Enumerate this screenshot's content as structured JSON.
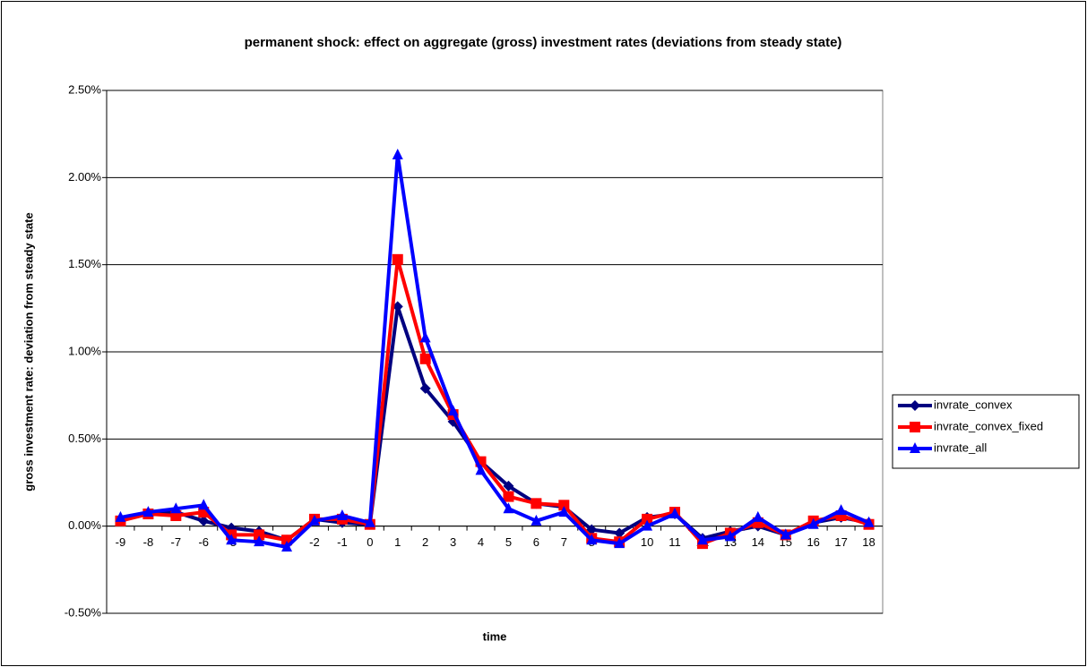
{
  "chart_data": {
    "type": "line",
    "title": "permanent shock: effect on aggregate (gross) investment rates (deviations from steady state)",
    "x_label": "time",
    "y_label": "gross investment rate: deviation from steady state",
    "categories": [
      "-9",
      "-8",
      "-7",
      "-6",
      "-5",
      "-4",
      "-3",
      "-2",
      "-1",
      "0",
      "1",
      "2",
      "3",
      "4",
      "5",
      "6",
      "7",
      "8",
      "9",
      "10",
      "11",
      "12",
      "13",
      "14",
      "15",
      "16",
      "17",
      "18"
    ],
    "series": [
      {
        "name": "invrate_convex",
        "color": "#000080",
        "marker": "diamond",
        "values": [
          0.04,
          0.07,
          0.08,
          0.03,
          -0.01,
          -0.03,
          -0.08,
          0.04,
          0.02,
          0.01,
          1.26,
          0.79,
          0.6,
          0.37,
          0.23,
          0.13,
          0.11,
          -0.02,
          -0.04,
          0.05,
          0.07,
          -0.07,
          -0.03,
          0.0,
          -0.05,
          0.02,
          0.05,
          0.02
        ]
      },
      {
        "name": "invrate_convex_fixed",
        "color": "#ff0000",
        "marker": "square",
        "values": [
          0.03,
          0.07,
          0.06,
          0.08,
          -0.05,
          -0.05,
          -0.08,
          0.04,
          0.04,
          0.01,
          1.53,
          0.96,
          0.64,
          0.37,
          0.17,
          0.13,
          0.12,
          -0.07,
          -0.09,
          0.04,
          0.08,
          -0.1,
          -0.04,
          0.02,
          -0.05,
          0.03,
          0.06,
          0.01
        ]
      },
      {
        "name": "invrate_all",
        "color": "#0000ff",
        "marker": "triangle",
        "values": [
          0.05,
          0.08,
          0.1,
          0.12,
          -0.08,
          -0.09,
          -0.12,
          0.03,
          0.06,
          0.02,
          2.13,
          1.08,
          0.66,
          0.32,
          0.1,
          0.03,
          0.08,
          -0.08,
          -0.1,
          0.0,
          0.07,
          -0.08,
          -0.06,
          0.05,
          -0.05,
          0.01,
          0.09,
          0.02
        ]
      }
    ],
    "ylim": [
      -0.5,
      2.5
    ],
    "yticks": [
      {
        "value": -0.5,
        "label": "-0.50%"
      },
      {
        "value": 0,
        "label": "0.00%"
      },
      {
        "value": 0.5,
        "label": "0.50%"
      },
      {
        "value": 1,
        "label": "1.00%"
      },
      {
        "value": 1.5,
        "label": "1.50%"
      },
      {
        "value": 2,
        "label": "2.00%"
      },
      {
        "value": 2.5,
        "label": "2.50%"
      }
    ],
    "grid": true,
    "legend": "right"
  }
}
